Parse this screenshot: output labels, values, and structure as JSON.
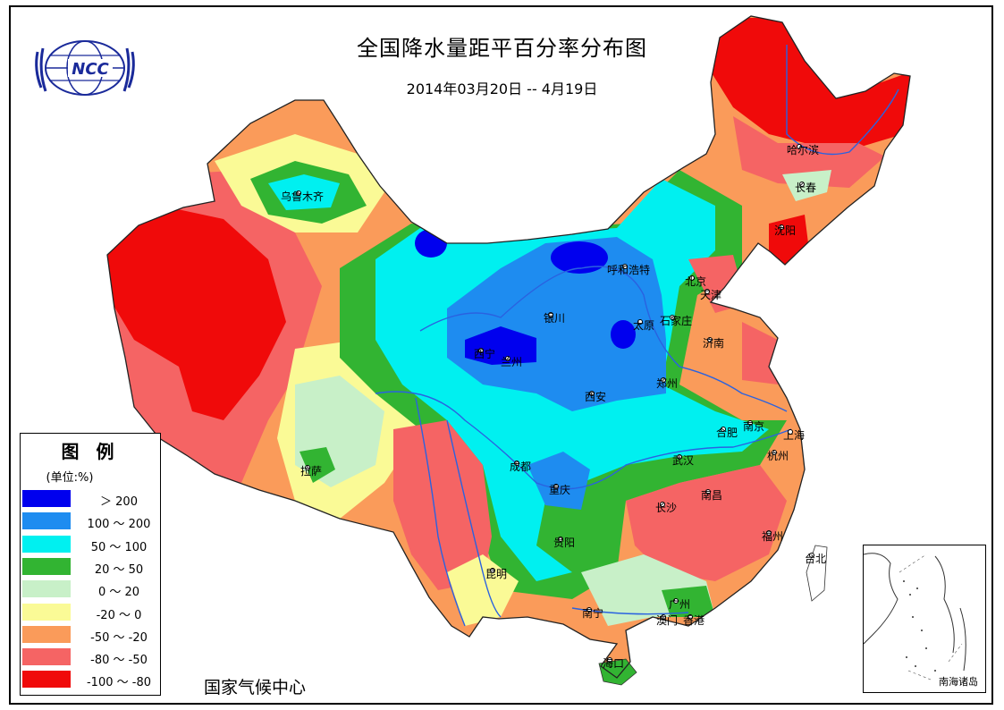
{
  "title": "全国降水量距平百分率分布图",
  "subtitle": "2014年03月20日 -- 4月19日",
  "issuer": "国家气候中心",
  "logo": {
    "text": "NCC",
    "icon": "ncc-globe-logo-icon"
  },
  "legend": {
    "title": "图 例",
    "unit": "(单位:%)",
    "items": [
      {
        "label": "＞ 200",
        "color": "#0000EE"
      },
      {
        "label": "100 ～ 200",
        "color": "#1E8CF0"
      },
      {
        "label": "50 ～ 100",
        "color": "#00F0F0"
      },
      {
        "label": "20 ～ 50",
        "color": "#32B432"
      },
      {
        "label": "0 ～ 20",
        "color": "#C8F0C8"
      },
      {
        "label": "-20 ～ 0",
        "color": "#FAFA96"
      },
      {
        "label": "-50 ～ -20",
        "color": "#FA9B5A"
      },
      {
        "label": "-80 ～ -50",
        "color": "#F56464"
      },
      {
        "label": "-100 ～ -80",
        "color": "#F00A0A"
      }
    ]
  },
  "inset": {
    "label": "南海诸岛"
  },
  "cities": [
    {
      "name": "哈尔滨"
    },
    {
      "name": "长春"
    },
    {
      "name": "沈阳"
    },
    {
      "name": "乌鲁木齐"
    },
    {
      "name": "呼和浩特"
    },
    {
      "name": "北京"
    },
    {
      "name": "天津"
    },
    {
      "name": "银川"
    },
    {
      "name": "石家庄"
    },
    {
      "name": "太原"
    },
    {
      "name": "济南"
    },
    {
      "name": "西宁"
    },
    {
      "name": "兰州"
    },
    {
      "name": "郑州"
    },
    {
      "name": "西安"
    },
    {
      "name": "合肥"
    },
    {
      "name": "南京"
    },
    {
      "name": "上海"
    },
    {
      "name": "拉萨"
    },
    {
      "name": "成都"
    },
    {
      "name": "武汉"
    },
    {
      "name": "杭州"
    },
    {
      "name": "重庆"
    },
    {
      "name": "长沙"
    },
    {
      "name": "南昌"
    },
    {
      "name": "贵阳"
    },
    {
      "name": "福州"
    },
    {
      "name": "台北"
    },
    {
      "name": "昆明"
    },
    {
      "name": "南宁"
    },
    {
      "name": "广州"
    },
    {
      "name": "澳门"
    },
    {
      "name": "香港"
    },
    {
      "name": "海口"
    }
  ]
}
